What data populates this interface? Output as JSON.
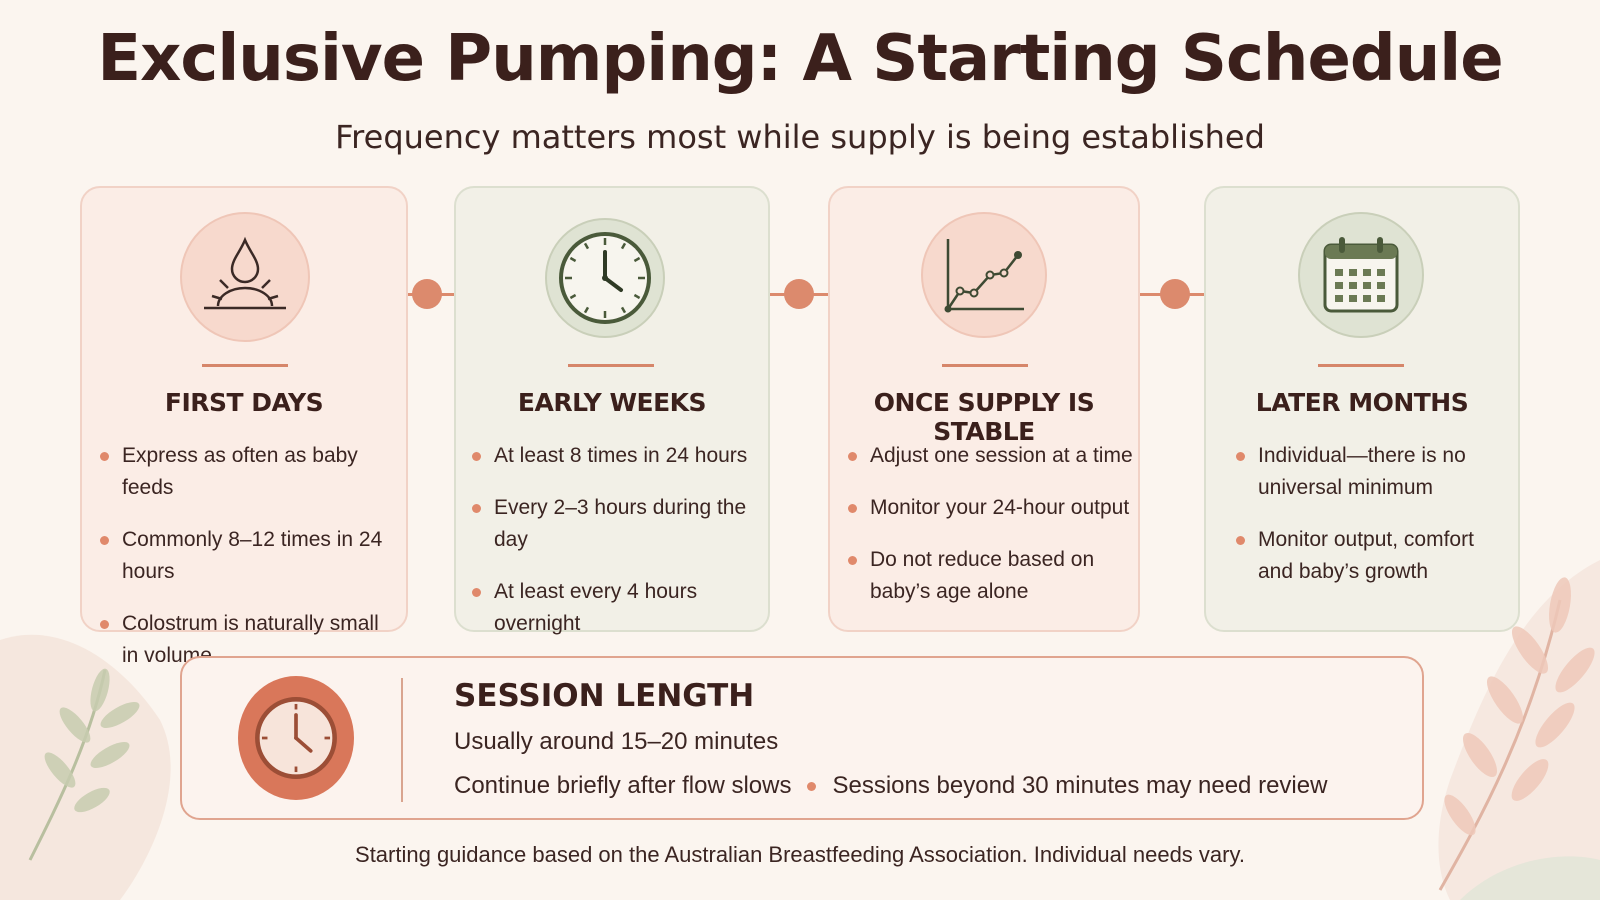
{
  "title": "Exclusive Pumping: A Starting Schedule",
  "subtitle": "Frequency matters most while supply is being established",
  "stages": [
    {
      "title": "FIRST DAYS",
      "icon": "droplet-sunrise-icon",
      "bullets": [
        "Express as often as baby feeds",
        "Commonly 8–12 times in 24 hours",
        "Colostrum is naturally small in volume"
      ]
    },
    {
      "title": "EARLY WEEKS",
      "icon": "clock-icon",
      "bullets": [
        "At least 8 times in 24 hours",
        "Every 2–3 hours during the day",
        "At least every 4 hours overnight"
      ]
    },
    {
      "title": "ONCE SUPPLY IS STABLE",
      "icon": "line-graph-icon",
      "bullets": [
        "Adjust one session at a time",
        "Monitor your 24-hour output",
        "Do not reduce based on baby’s age alone"
      ]
    },
    {
      "title": "LATER MONTHS",
      "icon": "calendar-icon",
      "bullets": [
        "Individual—there is no universal minimum",
        "Monitor output, comfort and baby’s growth"
      ]
    }
  ],
  "session": {
    "title": "SESSION LENGTH",
    "line1": "Usually around 15–20 minutes",
    "line2a": "Continue briefly after flow slows",
    "line2b": "Sessions beyond 30 minutes may need review",
    "icon": "clock-icon"
  },
  "footer": "Starting guidance based on the Australian Breastfeeding Association. Individual needs vary.",
  "colors": {
    "background": "#fbf5ef",
    "accent": "#d9775a",
    "pink_card": "#fbede6",
    "green_card": "#f2f0e7",
    "dark_text": "#3b201c",
    "clock_green": "#4a5a3a"
  }
}
